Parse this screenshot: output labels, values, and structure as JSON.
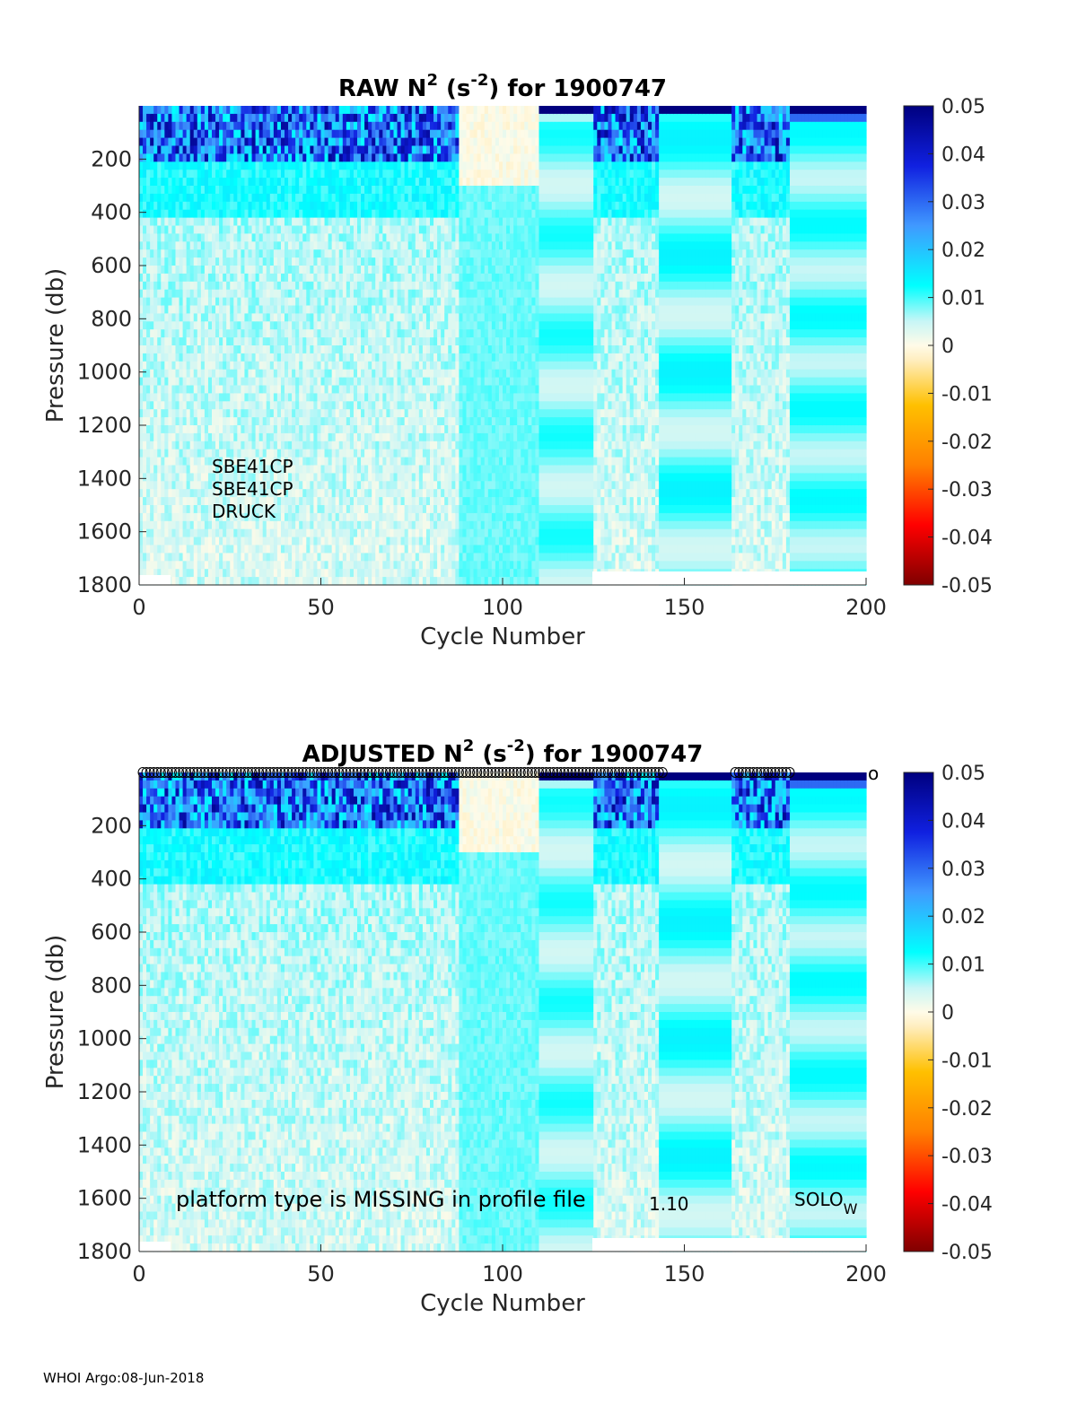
{
  "footer": "WHOI Argo:08-Jun-2018",
  "chart_data": [
    {
      "type": "heatmap",
      "title_prefix": "RAW N",
      "title_sup1": "2",
      "title_mid": " (s",
      "title_sup2": "-2",
      "title_suffix": ") for 1900747",
      "xlabel": "Cycle Number",
      "ylabel": "Pressure (db)",
      "xlim": [
        0,
        200
      ],
      "ylim": [
        1800,
        0
      ],
      "y_reversed": true,
      "xticks": [
        0,
        50,
        100,
        150,
        200
      ],
      "yticks": [
        200,
        400,
        600,
        800,
        1000,
        1200,
        1400,
        1600,
        1800
      ],
      "colorbar": {
        "range": [
          -0.05,
          0.05
        ],
        "ticks": [
          "0.05",
          "0.04",
          "0.03",
          "0.02",
          "0.01",
          "0",
          "-0.01",
          "-0.02",
          "-0.03",
          "-0.04",
          "-0.05"
        ]
      },
      "annotations": [
        "SBE41CP",
        "SBE41CP",
        "DRUCK"
      ],
      "missing_data_regions": [
        {
          "cycles": [
            125,
            200
          ],
          "pressure": [
            1750,
            1800
          ]
        },
        {
          "cycles": [
            0,
            8
          ],
          "pressure": [
            1770,
            1800
          ]
        }
      ]
    },
    {
      "type": "heatmap",
      "title_prefix": "ADJUSTED N",
      "title_sup1": "2",
      "title_mid": " (s",
      "title_sup2": "-2",
      "title_suffix": ") for 1900747",
      "xlabel": "Cycle Number",
      "ylabel": "Pressure (db)",
      "xlim": [
        0,
        200
      ],
      "ylim": [
        1800,
        0
      ],
      "y_reversed": true,
      "xticks": [
        0,
        50,
        100,
        150,
        200
      ],
      "yticks": [
        200,
        400,
        600,
        800,
        1000,
        1200,
        1400,
        1600,
        1800
      ],
      "colorbar": {
        "range": [
          -0.05,
          0.05
        ],
        "ticks": [
          "0.05",
          "0.04",
          "0.03",
          "0.02",
          "0.01",
          "0",
          "-0.01",
          "-0.02",
          "-0.03",
          "-0.04",
          "-0.05"
        ]
      },
      "annotation_left": "platform type is MISSING in profile file",
      "annotation_mid": "1.10",
      "annotation_right": "SOLO",
      "annotation_right_sub": "W",
      "flag_marker": "o",
      "flagged_cycle_ranges": [
        [
          1,
          124
        ],
        [
          125,
          144
        ],
        [
          164,
          179
        ],
        [
          202,
          202
        ]
      ]
    }
  ]
}
